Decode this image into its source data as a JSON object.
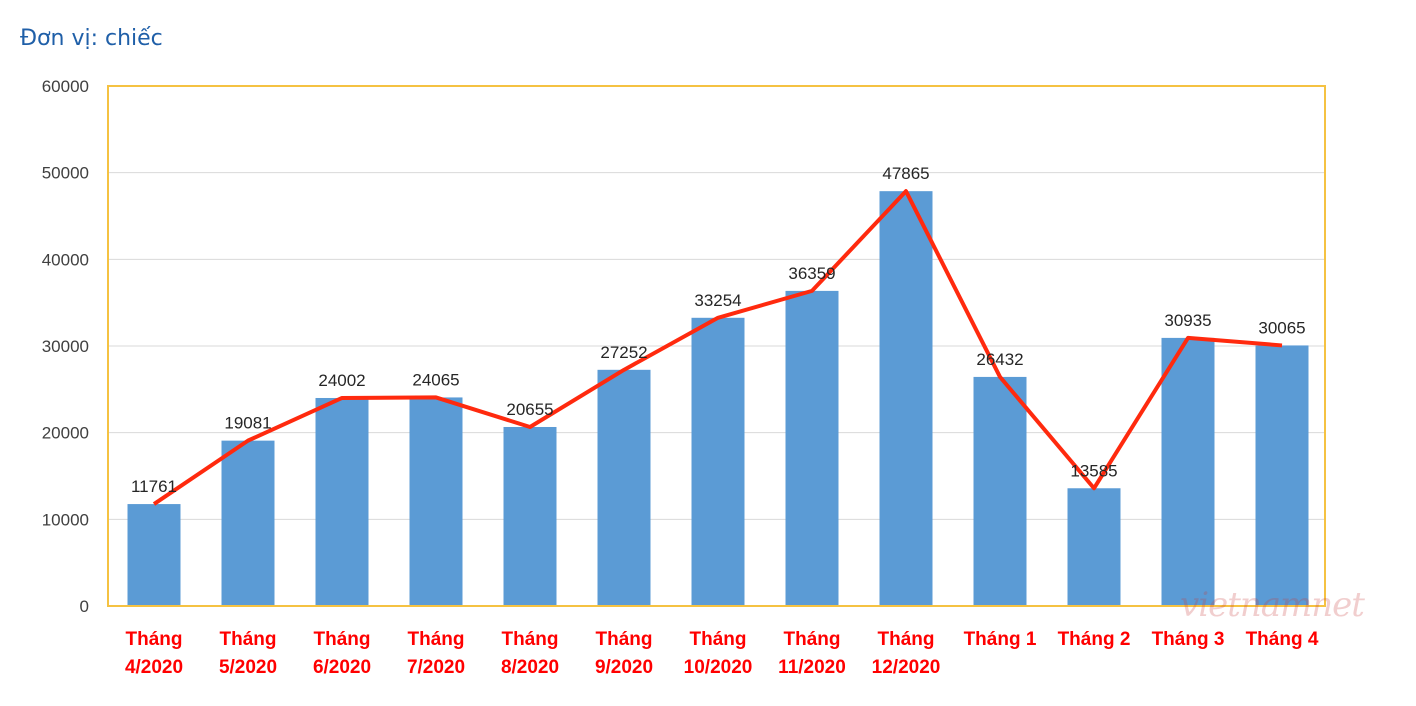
{
  "unit_label": "Đơn vị: chiếc",
  "watermark": "vietnamnet",
  "colors": {
    "bar": "#5b9bd5",
    "line": "#ff2a0e",
    "frame": "#f5c242",
    "grid": "#d9d9d9",
    "x_label": "#ff0000",
    "text": "#404040"
  },
  "chart_data": {
    "type": "bar",
    "categories": [
      [
        "Tháng",
        "4/2020"
      ],
      [
        "Tháng",
        "5/2020"
      ],
      [
        "Tháng",
        "6/2020"
      ],
      [
        "Tháng",
        "7/2020"
      ],
      [
        "Tháng",
        "8/2020"
      ],
      [
        "Tháng",
        "9/2020"
      ],
      [
        "Tháng",
        "10/2020"
      ],
      [
        "Tháng",
        "11/2020"
      ],
      [
        "Tháng",
        "12/2020"
      ],
      [
        "Tháng 1"
      ],
      [
        "Tháng 2"
      ],
      [
        "Tháng 3"
      ],
      [
        "Tháng 4"
      ]
    ],
    "values": [
      11761,
      19081,
      24002,
      24065,
      20655,
      27252,
      33254,
      36359,
      47865,
      26432,
      13585,
      30935,
      30065
    ],
    "data_labels": [
      "11761",
      "19081",
      "24002",
      "24065",
      "20655",
      "27252",
      "33254",
      "36359",
      "47865",
      "26432",
      "13585",
      "30935",
      "30065"
    ],
    "overlay_line": true,
    "ylim": [
      0,
      60000
    ],
    "yticks": [
      0,
      10000,
      20000,
      30000,
      40000,
      50000,
      60000
    ],
    "grid": true,
    "legend": false
  }
}
